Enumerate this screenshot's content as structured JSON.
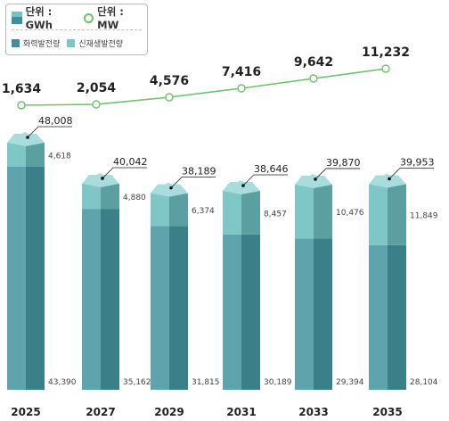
{
  "legend": {
    "unit_energy": "단위 : GWh",
    "unit_capacity": "단위 : MW",
    "series_thermal": "화력발전량",
    "series_renewable": "신재생발전량"
  },
  "colors": {
    "thermal_front": "#3b7f89",
    "thermal_side": "#5fa3ad",
    "renewable_front": "#5b9fa1",
    "renewable_side": "#7ec7c6",
    "top_face": "#a9dcdc",
    "line": "#6cc26c"
  },
  "chart_data": {
    "type": "bar",
    "subtype": "stacked-3d-bar-with-line",
    "categories": [
      "2025",
      "2027",
      "2029",
      "2031",
      "2033",
      "2035"
    ],
    "series": [
      {
        "name": "화력발전량",
        "unit": "GWh",
        "values": [
          43390,
          35162,
          31815,
          30189,
          29394,
          28104
        ]
      },
      {
        "name": "신재생발전량",
        "unit": "GWh",
        "values": [
          4618,
          4880,
          6374,
          8457,
          10476,
          11849
        ]
      }
    ],
    "totals": [
      48008,
      40042,
      38189,
      38646,
      39870,
      39953
    ],
    "line_series": {
      "name": "",
      "unit": "MW",
      "values": [
        1634,
        2054,
        4576,
        7416,
        9642,
        11232
      ]
    },
    "value_labels": {
      "thermal": [
        "43,390",
        "35,162",
        "31,815",
        "30,189",
        "29,394",
        "28,104"
      ],
      "renewable": [
        "4,618",
        "4,880",
        "6,374",
        "8,457",
        "10,476",
        "11,849"
      ],
      "totals": [
        "48,008",
        "40,042",
        "38,189",
        "38,646",
        "39,870",
        "39,953"
      ],
      "line": [
        "1,634",
        "2,054",
        "4,576",
        "7,416",
        "9,642",
        "11,232"
      ]
    },
    "legend_position": "top-left",
    "grid": false
  }
}
